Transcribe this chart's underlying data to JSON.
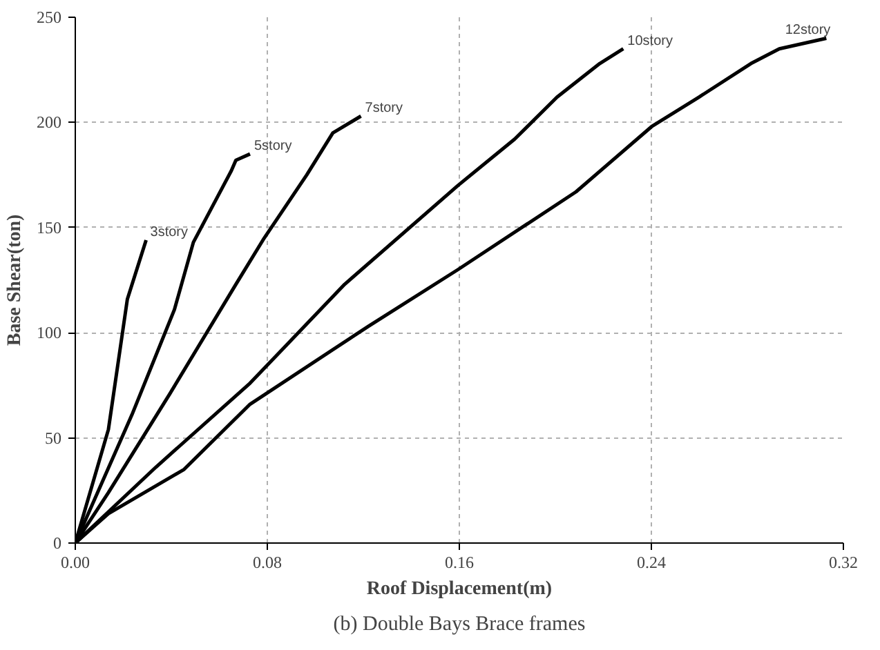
{
  "chart_data": {
    "type": "line",
    "title": "(b) Double Bays Brace frames",
    "xlabel": "Roof Displacement(m)",
    "ylabel": "Base Shear(ton)",
    "xlim": [
      0,
      0.32
    ],
    "ylim": [
      0,
      250
    ],
    "xticks": [
      {
        "value": 0,
        "label": "0.00"
      },
      {
        "value": 0.08,
        "label": "0.08"
      },
      {
        "value": 0.16,
        "label": "0.16"
      },
      {
        "value": 0.24,
        "label": "0.24"
      },
      {
        "value": 0.32,
        "label": "0.32"
      }
    ],
    "yticks": [
      0,
      50,
      100,
      150,
      200,
      250
    ],
    "grid": true,
    "marker": "none",
    "line_style": "solid",
    "series": [
      {
        "name": "3story",
        "color": "#000000",
        "x": [
          0,
          0.0138,
          0.0217,
          0.0295
        ],
        "values": [
          0,
          54,
          116,
          144
        ]
      },
      {
        "name": "5story",
        "color": "#000000",
        "x": [
          0,
          0.0236,
          0.0413,
          0.0492,
          0.065,
          0.0669,
          0.0728
        ],
        "values": [
          0,
          61,
          111,
          143,
          177,
          182,
          185
        ]
      },
      {
        "name": "7story",
        "color": "#000000",
        "x": [
          0,
          0.0138,
          0.0394,
          0.0669,
          0.0787,
          0.0964,
          0.1073,
          0.119
        ],
        "values": [
          0,
          24,
          71,
          123,
          145,
          175,
          195,
          203
        ]
      },
      {
        "name": "10story",
        "color": "#000000",
        "x": [
          0,
          0.0335,
          0.0728,
          0.1122,
          0.1594,
          0.183,
          0.2007,
          0.2185,
          0.2283
        ],
        "values": [
          0,
          36,
          76,
          123,
          170,
          192,
          212,
          228,
          235
        ]
      },
      {
        "name": "12story",
        "color": "#000000",
        "x": [
          0,
          0.0138,
          0.0453,
          0.0728,
          0.122,
          0.1594,
          0.2086,
          0.2401,
          0.2598,
          0.2815,
          0.2933,
          0.3129
        ],
        "values": [
          0,
          14,
          35,
          66,
          103,
          130,
          167,
          198,
          212,
          228,
          235,
          240
        ]
      }
    ]
  }
}
